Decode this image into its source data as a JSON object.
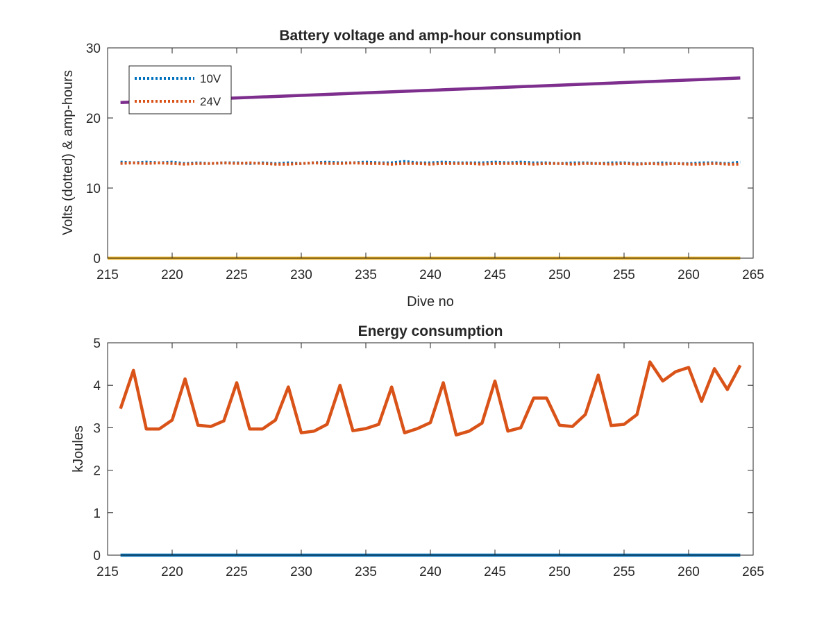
{
  "chart_data": [
    {
      "type": "line",
      "title": "Battery voltage and amp-hour consumption",
      "xlabel": "Dive no",
      "ylabel": "Volts (dotted) & amp-hours",
      "xlim": [
        215,
        265
      ],
      "ylim": [
        0,
        30
      ],
      "xticks": [
        "215",
        "220",
        "225",
        "230",
        "235",
        "240",
        "245",
        "250",
        "255",
        "260",
        "265"
      ],
      "yticks": [
        "0",
        "10",
        "20",
        "30"
      ],
      "legend_position": "top-left",
      "series": [
        {
          "name": "10V",
          "color": "#0072BD",
          "style": "dotted",
          "x": [
            216,
            217,
            218,
            219,
            220,
            221,
            222,
            223,
            224,
            225,
            226,
            227,
            228,
            229,
            230,
            231,
            232,
            233,
            234,
            235,
            236,
            237,
            238,
            239,
            240,
            241,
            242,
            243,
            244,
            245,
            246,
            247,
            248,
            249,
            250,
            251,
            252,
            253,
            254,
            255,
            256,
            257,
            258,
            259,
            260,
            261,
            262,
            263,
            264
          ],
          "y": [
            13.7,
            13.6,
            13.7,
            13.6,
            13.7,
            13.5,
            13.6,
            13.5,
            13.6,
            13.6,
            13.5,
            13.6,
            13.5,
            13.6,
            13.5,
            13.6,
            13.7,
            13.6,
            13.6,
            13.7,
            13.6,
            13.6,
            13.8,
            13.6,
            13.6,
            13.7,
            13.6,
            13.6,
            13.6,
            13.7,
            13.6,
            13.7,
            13.6,
            13.6,
            13.5,
            13.6,
            13.6,
            13.5,
            13.6,
            13.6,
            13.5,
            13.5,
            13.6,
            13.5,
            13.5,
            13.6,
            13.6,
            13.5,
            13.7
          ]
        },
        {
          "name": "24V",
          "color": "#D95319",
          "style": "dotted",
          "x": [
            216,
            217,
            218,
            219,
            220,
            221,
            222,
            223,
            224,
            225,
            226,
            227,
            228,
            229,
            230,
            231,
            232,
            233,
            234,
            235,
            236,
            237,
            238,
            239,
            240,
            241,
            242,
            243,
            244,
            245,
            246,
            247,
            248,
            249,
            250,
            251,
            252,
            253,
            254,
            255,
            256,
            257,
            258,
            259,
            260,
            261,
            262,
            263,
            264
          ],
          "y": [
            13.5,
            13.6,
            13.5,
            13.6,
            13.5,
            13.4,
            13.5,
            13.5,
            13.6,
            13.5,
            13.6,
            13.5,
            13.4,
            13.4,
            13.5,
            13.6,
            13.5,
            13.5,
            13.6,
            13.5,
            13.5,
            13.4,
            13.5,
            13.5,
            13.4,
            13.5,
            13.5,
            13.5,
            13.4,
            13.5,
            13.5,
            13.5,
            13.4,
            13.5,
            13.5,
            13.4,
            13.5,
            13.5,
            13.4,
            13.5,
            13.4,
            13.5,
            13.4,
            13.5,
            13.4,
            13.4,
            13.5,
            13.4,
            13.4
          ]
        },
        {
          "color": "#7E2F8E",
          "style": "solid",
          "x": [
            216,
            264
          ],
          "y": [
            22.2,
            25.7
          ]
        },
        {
          "color": "#EDB120",
          "style": "solid",
          "x": [
            215,
            264
          ],
          "y": [
            0,
            0
          ]
        }
      ]
    },
    {
      "type": "line",
      "title": "Energy consumption",
      "xlabel": "",
      "ylabel": "kJoules",
      "xlim": [
        215,
        265
      ],
      "ylim": [
        0,
        5
      ],
      "xticks": [
        "215",
        "220",
        "225",
        "230",
        "235",
        "240",
        "245",
        "250",
        "255",
        "260",
        "265"
      ],
      "yticks": [
        "0",
        "1",
        "2",
        "3",
        "4",
        "5"
      ],
      "series": [
        {
          "color": "#D95319",
          "style": "solid",
          "x": [
            216,
            217,
            218,
            219,
            220,
            221,
            222,
            223,
            224,
            225,
            226,
            227,
            228,
            229,
            230,
            231,
            232,
            233,
            234,
            235,
            236,
            237,
            238,
            239,
            240,
            241,
            242,
            243,
            244,
            245,
            246,
            247,
            248,
            249,
            250,
            251,
            252,
            253,
            254,
            255,
            256,
            257,
            258,
            259,
            260,
            261,
            262,
            263,
            264
          ],
          "y": [
            3.45,
            4.35,
            2.97,
            2.97,
            3.18,
            4.15,
            3.06,
            3.03,
            3.16,
            4.06,
            2.97,
            2.97,
            3.18,
            3.96,
            2.88,
            2.92,
            3.08,
            4.0,
            2.93,
            2.98,
            3.08,
            3.96,
            2.88,
            2.98,
            3.12,
            4.06,
            2.83,
            2.92,
            3.11,
            4.1,
            2.92,
            3.0,
            3.7,
            3.7,
            3.06,
            3.03,
            3.31,
            4.24,
            3.05,
            3.08,
            3.31,
            4.55,
            4.1,
            4.32,
            4.42,
            3.62,
            4.39,
            3.9,
            4.47
          ]
        },
        {
          "color": "#0072BD",
          "style": "solid",
          "x": [
            216,
            264
          ],
          "y": [
            0,
            0
          ]
        }
      ]
    }
  ]
}
